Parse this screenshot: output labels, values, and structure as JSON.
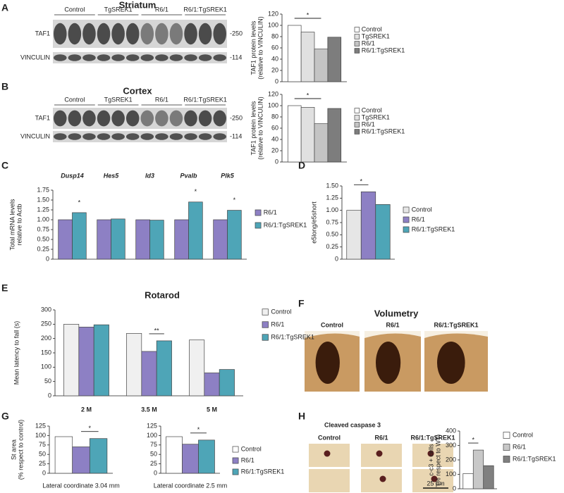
{
  "panels": {
    "letters": [
      "A",
      "B",
      "C",
      "D",
      "E",
      "F",
      "G",
      "H"
    ],
    "blots": [
      {
        "title": "Striatum",
        "groups": [
          "Control",
          "TgSREK1",
          "R6/1",
          "R6/1:TgSREK1"
        ],
        "rows": [
          "TAF1",
          "VINCULIN"
        ],
        "markers": [
          "-250",
          "-114"
        ]
      },
      {
        "title": "Cortex",
        "groups": [
          "Control",
          "TgSREK1",
          "R6/1",
          "R6/1:TgSREK1"
        ],
        "rows": [
          "TAF1",
          "VINCULIN"
        ],
        "markers": [
          "-250",
          "-114"
        ]
      }
    ],
    "volumetry": {
      "title": "Volumetry",
      "labels": [
        "Control",
        "R6/1",
        "R6/1:TgSREK1"
      ]
    },
    "caspase": {
      "title": "Cleaved caspase 3",
      "labels": [
        "Control",
        "R6/1",
        "R6/1:TgSREK1"
      ],
      "scale_bar": "25 µm"
    }
  },
  "chart_data": [
    {
      "type": "bar",
      "y_label": [
        "TAF1 protein levels",
        "(relative to VINCULIN)"
      ],
      "categories": [
        null
      ],
      "series": [
        {
          "name": "Control",
          "color": "#ffffff",
          "values": [
            100
          ]
        },
        {
          "name": "TgSREK1",
          "color": "#e0e0e0",
          "values": [
            88
          ]
        },
        {
          "name": "R6/1",
          "color": "#c4c4c4",
          "values": [
            58
          ]
        },
        {
          "name": "R6/1:TgSREK1",
          "color": "#7d7d7d",
          "values": [
            79
          ]
        }
      ],
      "ylim": [
        0,
        120
      ],
      "yticks": [
        0,
        20,
        40,
        60,
        80,
        100,
        120
      ],
      "annotations": [
        "*"
      ]
    },
    {
      "type": "bar",
      "y_label": [
        "TAF1 protein levels",
        "(relative to VINCULIN)"
      ],
      "categories": [
        null
      ],
      "series": [
        {
          "name": "Control",
          "color": "#ffffff",
          "values": [
            100
          ]
        },
        {
          "name": "TgSREK1",
          "color": "#e0e0e0",
          "values": [
            97
          ]
        },
        {
          "name": "R6/1",
          "color": "#c4c4c4",
          "values": [
            68
          ]
        },
        {
          "name": "R6/1:TgSREK1",
          "color": "#7d7d7d",
          "values": [
            95
          ]
        }
      ],
      "ylim": [
        0,
        120
      ],
      "yticks": [
        0,
        20,
        40,
        60,
        80,
        100,
        120
      ],
      "annotations": [
        "*"
      ]
    },
    {
      "type": "bar",
      "y_label": [
        "Total mRNA levels",
        "relative to Actb"
      ],
      "categories": [
        "Dusp14",
        "Hes5",
        "Id3",
        "Pvalb",
        "Plk5"
      ],
      "series": [
        {
          "name": "R6/1",
          "color": "#8d80c4",
          "values": [
            1,
            1,
            1,
            1,
            1
          ]
        },
        {
          "name": "R6/1:TgSREK1",
          "color": "#4ea5b7",
          "values": [
            1.18,
            1.02,
            0.99,
            1.45,
            1.24
          ]
        }
      ],
      "ylim": [
        0,
        1.75
      ],
      "yticks": [
        0,
        0.25,
        {
          "value": 0.5,
          "label": "0.50"
        },
        0.75,
        {
          "value": 1,
          "label": "1.00"
        },
        1.25,
        {
          "value": 1.5,
          "label": "1.50"
        },
        1.75
      ],
      "annotations": [
        "*",
        "*",
        "*"
      ]
    },
    {
      "type": "bar",
      "y_label": [
        "e5long/e5short"
      ],
      "categories": [
        null
      ],
      "series": [
        {
          "name": "Control",
          "color": "#e6e6e6",
          "values": [
            1.0
          ]
        },
        {
          "name": "R6/1",
          "color": "#8d80c4",
          "values": [
            1.38
          ]
        },
        {
          "name": "R6/1:TgSREK1",
          "color": "#4ea5b7",
          "values": [
            1.12
          ]
        }
      ],
      "ylim": [
        0,
        1.5
      ],
      "yticks": [
        0,
        0.25,
        {
          "value": 0.5,
          "label": "0.50"
        },
        0.75,
        {
          "value": 1,
          "label": "1.00"
        },
        1.25,
        {
          "value": 1.5,
          "label": "1.50"
        }
      ],
      "annotations": [
        "*"
      ]
    },
    {
      "type": "bar",
      "title": "Rotarod",
      "y_label": [
        "Mean latency to fall (s)"
      ],
      "categories": [
        "2 M",
        "3.5 M",
        "5 M"
      ],
      "series": [
        {
          "name": "Control",
          "color": "#f0f0f0",
          "values": [
            250,
            218,
            195
          ]
        },
        {
          "name": "R6/1",
          "color": "#8d80c4",
          "values": [
            240,
            155,
            80
          ]
        },
        {
          "name": "R6/1:TgSREK1",
          "color": "#4ea5b7",
          "values": [
            248,
            192,
            92
          ]
        }
      ],
      "ylim": [
        0,
        300
      ],
      "yticks": [
        0,
        50,
        100,
        150,
        200,
        250,
        300
      ],
      "annotations": [
        "**"
      ]
    },
    {
      "type": "bar",
      "y_label": [
        "St area",
        "(% respect to control)"
      ],
      "x_label": "Lateral coordinate 3.04 mm",
      "categories": [
        null
      ],
      "series": [
        {
          "color": "#ffffff",
          "values": [
            97
          ]
        },
        {
          "color": "#8d80c4",
          "values": [
            70
          ]
        },
        {
          "color": "#4ea5b7",
          "values": [
            92
          ]
        }
      ],
      "ylim": [
        0,
        125
      ],
      "yticks": [
        0,
        25,
        50,
        75,
        100,
        125
      ],
      "annotations": [
        "*"
      ]
    },
    {
      "type": "bar",
      "x_label": "Lateral coordinate 2.5 mm",
      "categories": [
        null
      ],
      "series": [
        {
          "name": "Control",
          "color": "#ffffff",
          "values": [
            97
          ]
        },
        {
          "name": "R6/1",
          "color": "#8d80c4",
          "values": [
            77
          ]
        },
        {
          "name": "R6/1:TgSREK1",
          "color": "#4ea5b7",
          "values": [
            88
          ]
        }
      ],
      "ylim": [
        0,
        125
      ],
      "yticks": [
        0,
        25,
        50,
        75,
        100,
        125
      ],
      "annotations": [
        "*"
      ]
    },
    {
      "type": "bar",
      "y_label": [
        "c-c3 + cells",
        "(% respect to WT)"
      ],
      "categories": [
        null
      ],
      "series": [
        {
          "name": "Control",
          "color": "#ffffff",
          "values": [
            105
          ]
        },
        {
          "name": "R6/1",
          "color": "#c8c8c8",
          "values": [
            268
          ]
        },
        {
          "name": "R6/1:TgSREK1",
          "color": "#808080",
          "values": [
            160
          ]
        }
      ],
      "ylim": [
        0,
        400
      ],
      "yticks": [
        0,
        100,
        200,
        300,
        400
      ],
      "annotations": [
        "*"
      ]
    }
  ]
}
